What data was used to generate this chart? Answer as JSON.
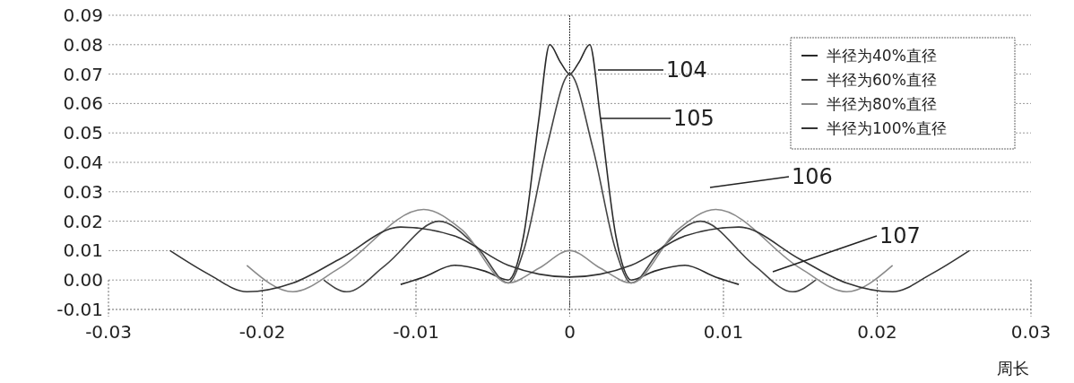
{
  "chart_data": {
    "type": "line",
    "xlabel": "周长",
    "xlim": [
      -0.03,
      0.03
    ],
    "xticks": [
      -0.03,
      -0.02,
      -0.01,
      0,
      0.01,
      0.02,
      0.03
    ],
    "ylim": [
      -0.01,
      0.09
    ],
    "yticks": [
      {
        "value": -0.01,
        "label": "-0.01"
      },
      {
        "value": 0,
        "label": "0.00"
      },
      {
        "value": 0.01,
        "label": "0.01"
      },
      {
        "value": 0.02,
        "label": "0.02"
      },
      {
        "value": 0.03,
        "label": "0.03"
      },
      {
        "value": 0.04,
        "label": "0.04"
      },
      {
        "value": 0.05,
        "label": "0.05"
      },
      {
        "value": 0.06,
        "label": "0.06"
      },
      {
        "value": 0.07,
        "label": "0.07"
      },
      {
        "value": 0.08,
        "label": "0.08"
      },
      {
        "value": 0.09,
        "label": "0.09"
      }
    ],
    "grid": "y",
    "legend": "top right",
    "line_style": "solid",
    "marker": "none",
    "series": [
      {
        "name": "半径为40%直径",
        "color": "#2a2a2a",
        "x": [
          -0.011,
          -0.0095,
          -0.0075,
          -0.0055,
          -0.004,
          -0.003,
          -0.002,
          -0.0013,
          -0.0006,
          0,
          0.0006,
          0.0013,
          0.002,
          0.003,
          0.004,
          0.0055,
          0.0075,
          0.0095,
          0.011
        ],
        "values": [
          -0.0015,
          0.001,
          0.005,
          0.003,
          0.0,
          0.015,
          0.055,
          0.08,
          0.074,
          0.07,
          0.074,
          0.08,
          0.055,
          0.015,
          0.0,
          0.003,
          0.005,
          0.001,
          -0.0015
        ]
      },
      {
        "name": "半径为60%直径",
        "color": "#444444",
        "x": [
          -0.016,
          -0.0145,
          -0.012,
          -0.0085,
          -0.006,
          -0.004,
          -0.003,
          -0.0015,
          0,
          0.0015,
          0.003,
          0.004,
          0.006,
          0.0085,
          0.012,
          0.0145,
          0.016
        ],
        "values": [
          0.0,
          -0.004,
          0.005,
          0.02,
          0.011,
          -0.001,
          0.01,
          0.045,
          0.07,
          0.045,
          0.01,
          -0.001,
          0.011,
          0.02,
          0.005,
          -0.004,
          0.0
        ]
      },
      {
        "name": "半径为80%直径",
        "color": "#8a8a8a",
        "x": [
          -0.021,
          -0.018,
          -0.015,
          -0.0095,
          -0.007,
          -0.004,
          -0.002,
          0,
          0.002,
          0.004,
          0.007,
          0.0095,
          0.015,
          0.018,
          0.021
        ],
        "values": [
          0.005,
          -0.004,
          0.004,
          0.024,
          0.017,
          -0.001,
          0.004,
          0.01,
          0.004,
          -0.001,
          0.017,
          0.024,
          0.004,
          -0.004,
          0.005
        ]
      },
      {
        "name": "半径为100%直径",
        "color": "#333333",
        "x": [
          -0.026,
          -0.0235,
          -0.021,
          -0.018,
          -0.015,
          -0.011,
          -0.0075,
          -0.004,
          -0.002,
          0,
          0.002,
          0.004,
          0.0075,
          0.011,
          0.015,
          0.018,
          0.021,
          0.0235,
          0.026
        ],
        "values": [
          0.01,
          0.002,
          -0.004,
          -0.001,
          0.007,
          0.018,
          0.015,
          0.005,
          0.002,
          0.001,
          0.002,
          0.005,
          0.015,
          0.018,
          0.007,
          -0.001,
          -0.004,
          0.002,
          0.01
        ]
      }
    ],
    "ref_lines": [
      {
        "axis": "x",
        "value": 0,
        "color": "#333333",
        "line_style": "dotted"
      }
    ],
    "annotations": [
      "104",
      "105",
      "106",
      "107"
    ]
  }
}
